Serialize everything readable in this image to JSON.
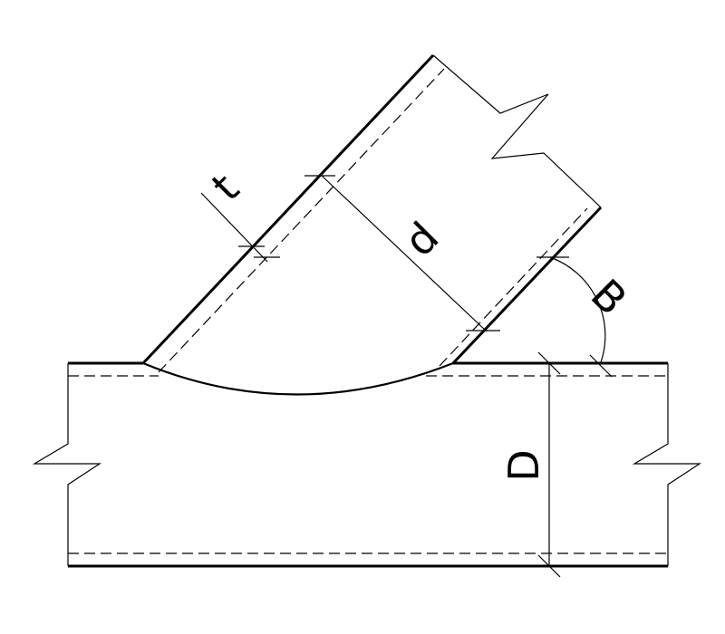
{
  "labels": {
    "brace_thickness": "t",
    "brace_diameter": "d",
    "angle": "B",
    "chord_diameter": "D"
  },
  "colors": {
    "line": "#000000",
    "background": "#ffffff"
  }
}
